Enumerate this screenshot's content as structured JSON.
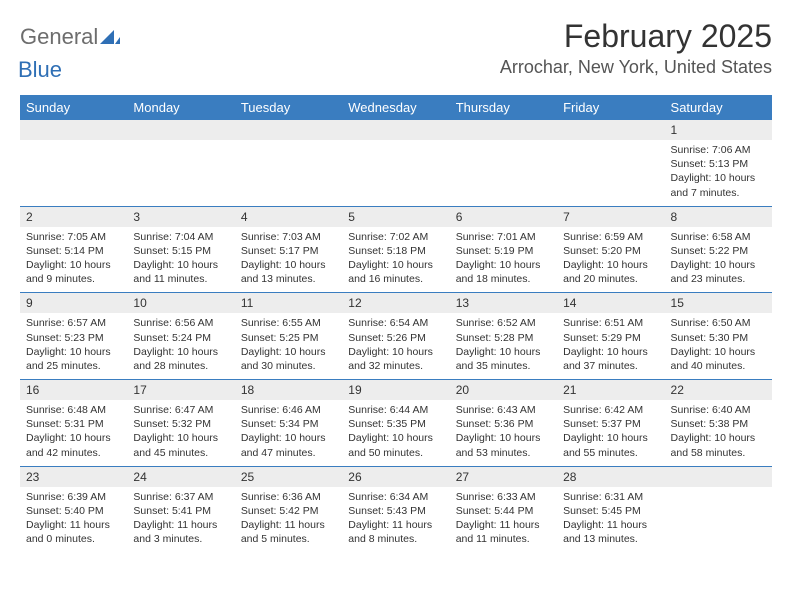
{
  "logo": {
    "main": "General",
    "accent": "Blue"
  },
  "title": "February 2025",
  "location": "Arrochar, New York, United States",
  "colors": {
    "header_bg": "#3a7dc0",
    "header_text": "#ffffff",
    "daynum_bg": "#ededed",
    "border": "#3a7dc0",
    "logo_gray": "#6d6d6d",
    "logo_blue": "#2f6fb5"
  },
  "weekdays": [
    "Sunday",
    "Monday",
    "Tuesday",
    "Wednesday",
    "Thursday",
    "Friday",
    "Saturday"
  ],
  "weeks": [
    [
      {
        "n": "",
        "sunrise": "",
        "sunset": "",
        "daylight": ""
      },
      {
        "n": "",
        "sunrise": "",
        "sunset": "",
        "daylight": ""
      },
      {
        "n": "",
        "sunrise": "",
        "sunset": "",
        "daylight": ""
      },
      {
        "n": "",
        "sunrise": "",
        "sunset": "",
        "daylight": ""
      },
      {
        "n": "",
        "sunrise": "",
        "sunset": "",
        "daylight": ""
      },
      {
        "n": "",
        "sunrise": "",
        "sunset": "",
        "daylight": ""
      },
      {
        "n": "1",
        "sunrise": "Sunrise: 7:06 AM",
        "sunset": "Sunset: 5:13 PM",
        "daylight": "Daylight: 10 hours and 7 minutes."
      }
    ],
    [
      {
        "n": "2",
        "sunrise": "Sunrise: 7:05 AM",
        "sunset": "Sunset: 5:14 PM",
        "daylight": "Daylight: 10 hours and 9 minutes."
      },
      {
        "n": "3",
        "sunrise": "Sunrise: 7:04 AM",
        "sunset": "Sunset: 5:15 PM",
        "daylight": "Daylight: 10 hours and 11 minutes."
      },
      {
        "n": "4",
        "sunrise": "Sunrise: 7:03 AM",
        "sunset": "Sunset: 5:17 PM",
        "daylight": "Daylight: 10 hours and 13 minutes."
      },
      {
        "n": "5",
        "sunrise": "Sunrise: 7:02 AM",
        "sunset": "Sunset: 5:18 PM",
        "daylight": "Daylight: 10 hours and 16 minutes."
      },
      {
        "n": "6",
        "sunrise": "Sunrise: 7:01 AM",
        "sunset": "Sunset: 5:19 PM",
        "daylight": "Daylight: 10 hours and 18 minutes."
      },
      {
        "n": "7",
        "sunrise": "Sunrise: 6:59 AM",
        "sunset": "Sunset: 5:20 PM",
        "daylight": "Daylight: 10 hours and 20 minutes."
      },
      {
        "n": "8",
        "sunrise": "Sunrise: 6:58 AM",
        "sunset": "Sunset: 5:22 PM",
        "daylight": "Daylight: 10 hours and 23 minutes."
      }
    ],
    [
      {
        "n": "9",
        "sunrise": "Sunrise: 6:57 AM",
        "sunset": "Sunset: 5:23 PM",
        "daylight": "Daylight: 10 hours and 25 minutes."
      },
      {
        "n": "10",
        "sunrise": "Sunrise: 6:56 AM",
        "sunset": "Sunset: 5:24 PM",
        "daylight": "Daylight: 10 hours and 28 minutes."
      },
      {
        "n": "11",
        "sunrise": "Sunrise: 6:55 AM",
        "sunset": "Sunset: 5:25 PM",
        "daylight": "Daylight: 10 hours and 30 minutes."
      },
      {
        "n": "12",
        "sunrise": "Sunrise: 6:54 AM",
        "sunset": "Sunset: 5:26 PM",
        "daylight": "Daylight: 10 hours and 32 minutes."
      },
      {
        "n": "13",
        "sunrise": "Sunrise: 6:52 AM",
        "sunset": "Sunset: 5:28 PM",
        "daylight": "Daylight: 10 hours and 35 minutes."
      },
      {
        "n": "14",
        "sunrise": "Sunrise: 6:51 AM",
        "sunset": "Sunset: 5:29 PM",
        "daylight": "Daylight: 10 hours and 37 minutes."
      },
      {
        "n": "15",
        "sunrise": "Sunrise: 6:50 AM",
        "sunset": "Sunset: 5:30 PM",
        "daylight": "Daylight: 10 hours and 40 minutes."
      }
    ],
    [
      {
        "n": "16",
        "sunrise": "Sunrise: 6:48 AM",
        "sunset": "Sunset: 5:31 PM",
        "daylight": "Daylight: 10 hours and 42 minutes."
      },
      {
        "n": "17",
        "sunrise": "Sunrise: 6:47 AM",
        "sunset": "Sunset: 5:32 PM",
        "daylight": "Daylight: 10 hours and 45 minutes."
      },
      {
        "n": "18",
        "sunrise": "Sunrise: 6:46 AM",
        "sunset": "Sunset: 5:34 PM",
        "daylight": "Daylight: 10 hours and 47 minutes."
      },
      {
        "n": "19",
        "sunrise": "Sunrise: 6:44 AM",
        "sunset": "Sunset: 5:35 PM",
        "daylight": "Daylight: 10 hours and 50 minutes."
      },
      {
        "n": "20",
        "sunrise": "Sunrise: 6:43 AM",
        "sunset": "Sunset: 5:36 PM",
        "daylight": "Daylight: 10 hours and 53 minutes."
      },
      {
        "n": "21",
        "sunrise": "Sunrise: 6:42 AM",
        "sunset": "Sunset: 5:37 PM",
        "daylight": "Daylight: 10 hours and 55 minutes."
      },
      {
        "n": "22",
        "sunrise": "Sunrise: 6:40 AM",
        "sunset": "Sunset: 5:38 PM",
        "daylight": "Daylight: 10 hours and 58 minutes."
      }
    ],
    [
      {
        "n": "23",
        "sunrise": "Sunrise: 6:39 AM",
        "sunset": "Sunset: 5:40 PM",
        "daylight": "Daylight: 11 hours and 0 minutes."
      },
      {
        "n": "24",
        "sunrise": "Sunrise: 6:37 AM",
        "sunset": "Sunset: 5:41 PM",
        "daylight": "Daylight: 11 hours and 3 minutes."
      },
      {
        "n": "25",
        "sunrise": "Sunrise: 6:36 AM",
        "sunset": "Sunset: 5:42 PM",
        "daylight": "Daylight: 11 hours and 5 minutes."
      },
      {
        "n": "26",
        "sunrise": "Sunrise: 6:34 AM",
        "sunset": "Sunset: 5:43 PM",
        "daylight": "Daylight: 11 hours and 8 minutes."
      },
      {
        "n": "27",
        "sunrise": "Sunrise: 6:33 AM",
        "sunset": "Sunset: 5:44 PM",
        "daylight": "Daylight: 11 hours and 11 minutes."
      },
      {
        "n": "28",
        "sunrise": "Sunrise: 6:31 AM",
        "sunset": "Sunset: 5:45 PM",
        "daylight": "Daylight: 11 hours and 13 minutes."
      },
      {
        "n": "",
        "sunrise": "",
        "sunset": "",
        "daylight": ""
      }
    ]
  ]
}
